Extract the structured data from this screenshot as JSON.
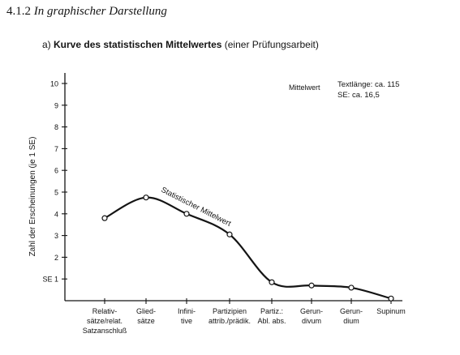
{
  "section": {
    "number": "4.1.2",
    "title": "In graphischer Darstellung"
  },
  "heading": {
    "prefix": "a)",
    "title": "Kurve des statistischen Mittelwertes",
    "note": "(einer Prüfungsarbeit)"
  },
  "chart_data": {
    "type": "line",
    "ylabel": "Zahl der Erscheinungen (je 1 SE)",
    "ylim": [
      0,
      10
    ],
    "yticks": [
      {
        "v": 1,
        "label": "SE 1"
      },
      {
        "v": 2,
        "label": "2"
      },
      {
        "v": 3,
        "label": "3"
      },
      {
        "v": 4,
        "label": "4"
      },
      {
        "v": 5,
        "label": "5"
      },
      {
        "v": 6,
        "label": "6"
      },
      {
        "v": 7,
        "label": "7"
      },
      {
        "v": 8,
        "label": "8"
      },
      {
        "v": 9,
        "label": "9"
      },
      {
        "v": 10,
        "label": "10"
      }
    ],
    "categories": [
      [
        "Relativ-",
        "sätze/relat.",
        "Satzanschluß"
      ],
      [
        "Glied-",
        "sätze"
      ],
      [
        "Infini-",
        "tive"
      ],
      [
        "Partizipien",
        "attrib./prädik."
      ],
      [
        "Partiz.:",
        "Abl. abs."
      ],
      [
        "Gerun-",
        "divum"
      ],
      [
        "Gerun-",
        "dium"
      ],
      [
        "Supinum"
      ]
    ],
    "values": [
      3.8,
      4.75,
      4.0,
      3.05,
      0.85,
      0.7,
      0.6,
      0.1
    ],
    "curve_label": "Statistischer Mittelwert",
    "legend": {
      "title": "Mittelwert",
      "lines": [
        "Textlänge: ca. 115",
        "SE: ca. 16,5"
      ],
      "position": "top-right"
    },
    "grid": false
  }
}
